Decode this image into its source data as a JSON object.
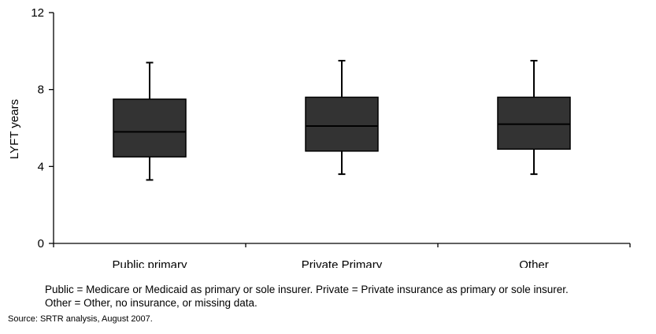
{
  "chart_data": {
    "type": "box",
    "ylabel": "LYFT years",
    "ylim": [
      0,
      12
    ],
    "yticks": [
      0,
      4,
      8,
      12
    ],
    "categories": [
      "Public primary",
      "Private Primary",
      "Other"
    ],
    "boxes": [
      {
        "category": "Public primary",
        "whisker_low": 3.3,
        "q1": 4.5,
        "median": 5.8,
        "q3": 7.5,
        "whisker_high": 9.4
      },
      {
        "category": "Private Primary",
        "whisker_low": 3.6,
        "q1": 4.8,
        "median": 6.1,
        "q3": 7.6,
        "whisker_high": 9.5
      },
      {
        "category": "Other",
        "whisker_low": 3.6,
        "q1": 4.9,
        "median": 6.2,
        "q3": 7.6,
        "whisker_high": 9.5
      }
    ],
    "box_color": "#333333",
    "grid": false,
    "legend": "none"
  },
  "footnote": {
    "line1": "Public = Medicare or Medicaid as primary or sole insurer. Private = Private insurance as primary or sole insurer.",
    "line2": "Other = Other, no insurance, or missing data."
  },
  "source": "Source: SRTR analysis, August 2007."
}
